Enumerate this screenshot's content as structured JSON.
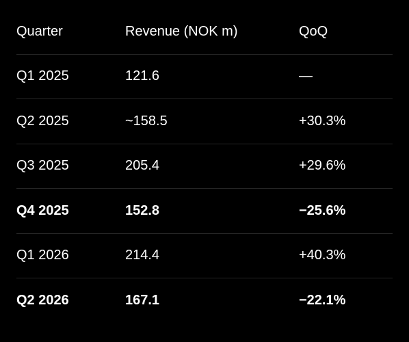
{
  "table": {
    "columns": [
      "Quarter",
      "Revenue (NOK m)",
      "QoQ"
    ],
    "rows": [
      {
        "cells": [
          "Q1 2025",
          "121.6",
          "—"
        ],
        "bold": false
      },
      {
        "cells": [
          "Q2 2025",
          "~158.5",
          "+30.3%"
        ],
        "bold": false
      },
      {
        "cells": [
          "Q3 2025",
          "205.4",
          "+29.6%"
        ],
        "bold": false
      },
      {
        "cells": [
          "Q4 2025",
          "152.8",
          "−25.6%"
        ],
        "bold": true
      },
      {
        "cells": [
          "Q1 2026",
          "214.4",
          "+40.3%"
        ],
        "bold": false
      },
      {
        "cells": [
          "Q2 2026",
          "167.1",
          "−22.1%"
        ],
        "bold": true
      }
    ]
  }
}
